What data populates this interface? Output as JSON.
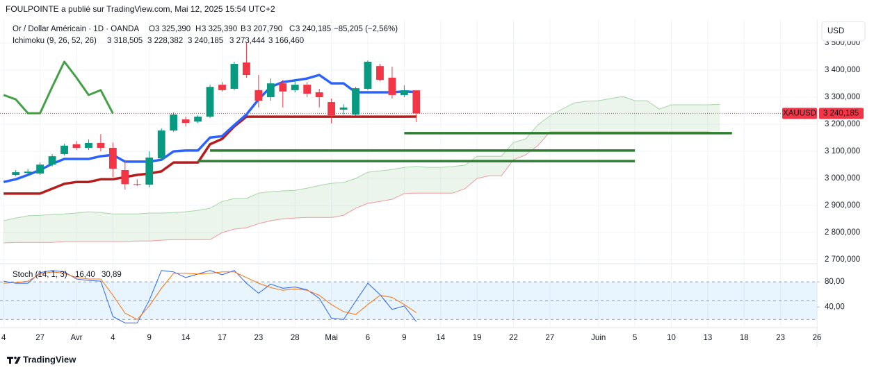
{
  "publisher": "FOULPOINTE a publié sur TradingView.com, Mai 12, 2025 15:54 UTC+2",
  "brand": "TradingView",
  "chart_data": {
    "type": "candlestick",
    "title": "Or / Dollar Américain · 1D · OANDA",
    "ohlc_legend": [
      {
        "key": "O",
        "value": "3 325,390"
      },
      {
        "key": "H",
        "value": "3 325,390"
      },
      {
        "key": "B",
        "value": "3 207,790"
      },
      {
        "key": "C",
        "value": "3 240,185"
      }
    ],
    "change_label": "−85,205 (−2,56%)",
    "currency": "USD",
    "up_color": "#089981",
    "down_color": "#f23645",
    "grid": true,
    "xlim": [
      -0.3,
      67
    ],
    "xticks": [
      {
        "value": 0,
        "label": "4"
      },
      {
        "value": 3,
        "label": "27"
      },
      {
        "value": 6,
        "label": "Avr"
      },
      {
        "value": 9,
        "label": "4"
      },
      {
        "value": 12,
        "label": "9"
      },
      {
        "value": 15,
        "label": "14"
      },
      {
        "value": 18,
        "label": "17"
      },
      {
        "value": 21,
        "label": "23"
      },
      {
        "value": 24,
        "label": "28"
      },
      {
        "value": 27,
        "label": "Mai"
      },
      {
        "value": 30,
        "label": "6"
      },
      {
        "value": 33,
        "label": "9"
      },
      {
        "value": 36,
        "label": "14"
      },
      {
        "value": 39,
        "label": "19"
      },
      {
        "value": 42,
        "label": "22"
      },
      {
        "value": 45,
        "label": "27"
      },
      {
        "value": 49,
        "label": "Juin"
      },
      {
        "value": 52,
        "label": "5"
      },
      {
        "value": 55,
        "label": "10"
      },
      {
        "value": 58,
        "label": "13"
      },
      {
        "value": 61,
        "label": "18"
      },
      {
        "value": 64,
        "label": "23"
      },
      {
        "value": 67,
        "label": "26"
      }
    ],
    "ylim": [
      2685,
      3582
    ],
    "yticks": [
      {
        "value": 3500,
        "label": "3 500,000"
      },
      {
        "value": 3400,
        "label": "3 400,000"
      },
      {
        "value": 3300,
        "label": "3 300,000"
      },
      {
        "value": 3200,
        "label": "3 200,000"
      },
      {
        "value": 3100,
        "label": "3 100,000"
      },
      {
        "value": 3000,
        "label": "3 000,000"
      },
      {
        "value": 2900,
        "label": "2 900,000"
      },
      {
        "value": 2800,
        "label": "2 800,000"
      },
      {
        "value": 2700,
        "label": "2 700,000"
      }
    ],
    "x": [
      1,
      2,
      3,
      4,
      5,
      6,
      7,
      8,
      9,
      10,
      11,
      12,
      13,
      14,
      15,
      16,
      17,
      18,
      19,
      20,
      21,
      22,
      23,
      24,
      25,
      26,
      27,
      28,
      29,
      30,
      31,
      32,
      33,
      34
    ],
    "open": [
      3013,
      3020,
      3018,
      3051,
      3090,
      3126,
      3113,
      3131,
      3113,
      3031,
      2979,
      2977,
      3074,
      3177,
      3218,
      3210,
      3228,
      3346,
      3331,
      3428,
      3326,
      3300,
      3351,
      3326,
      3346,
      3318,
      3282,
      3254,
      3236,
      3331,
      3415,
      3372,
      3308,
      3325.39
    ],
    "high": [
      3031,
      3035,
      3059,
      3090,
      3128,
      3138,
      3144,
      3164,
      3133,
      3064,
      2997,
      3100,
      3185,
      3244,
      3228,
      3233,
      3346,
      3356,
      3431,
      3500,
      3382,
      3369,
      3364,
      3367,
      3356,
      3331,
      3295,
      3274,
      3338,
      3436,
      3423,
      3413,
      3344,
      3325.39
    ],
    "low": [
      3008,
      3012,
      3013,
      3044,
      3085,
      3105,
      3105,
      3100,
      3005,
      2959,
      2972,
      2967,
      3069,
      3172,
      3192,
      3205,
      3223,
      3321,
      3326,
      3372,
      3262,
      3287,
      3262,
      3318,
      3300,
      3262,
      3203,
      3236,
      3231,
      3326,
      3359,
      3295,
      3300,
      3207.79
    ],
    "close": [
      3023,
      3025,
      3051,
      3082,
      3121,
      3113,
      3131,
      3113,
      3036,
      2979,
      2977,
      3077,
      3177,
      3236,
      3205,
      3228,
      3338,
      3326,
      3423,
      3382,
      3287,
      3351,
      3321,
      3346,
      3313,
      3300,
      3233,
      3262,
      3333,
      3431,
      3364,
      3308,
      3325.39,
      3240.185
    ],
    "price_label": {
      "symbol": "XAUUSD",
      "value": "3 240,185"
    },
    "ichimoku": {
      "name": "Ichimoku (9, 26, 52, 26)",
      "cloud_color": "#43a047",
      "series": [
        {
          "color": "#2962ff",
          "width": 3.5,
          "value_label": "3 318,505",
          "x": [
            0,
            1,
            2,
            3,
            4,
            5,
            6,
            7,
            8,
            9,
            10,
            11,
            12,
            13,
            14,
            15,
            16,
            17,
            18,
            19,
            20,
            21,
            22,
            23,
            24,
            25,
            26,
            27,
            28,
            29,
            30,
            31,
            32,
            33,
            34
          ],
          "values": [
            2987,
            2997,
            3013,
            3031,
            3054,
            3072,
            3072,
            3072,
            3082,
            3087,
            3062,
            3062,
            3062,
            3069,
            3100,
            3103,
            3103,
            3151,
            3156,
            3197,
            3236,
            3292,
            3338,
            3356,
            3362,
            3369,
            3382,
            3351,
            3351,
            3318,
            3318,
            3318,
            3318,
            3321,
            3318.505
          ]
        },
        {
          "color": "#b71c1c",
          "width": 3.5,
          "value_label": "3 228,382",
          "x": [
            0,
            1,
            2,
            3,
            4,
            5,
            6,
            7,
            8,
            9,
            10,
            11,
            12,
            13,
            14,
            15,
            16,
            17,
            18,
            19,
            20,
            21,
            22,
            23,
            24,
            25,
            26,
            27,
            28,
            29,
            30,
            31,
            32,
            33,
            34
          ],
          "values": [
            2944,
            2944,
            2944,
            2944,
            2962,
            2980,
            2987,
            2987,
            2997,
            2997,
            3005,
            3013,
            3018,
            3026,
            3059,
            3059,
            3059,
            3126,
            3146,
            3192,
            3228,
            3228,
            3228,
            3228,
            3228,
            3228,
            3228,
            3228,
            3228,
            3228,
            3228,
            3228,
            3228,
            3228,
            3228.382
          ]
        },
        {
          "color": "#43a047",
          "width": 3,
          "value_label": "3 240,185",
          "x": [
            0,
            1,
            2,
            3,
            4,
            5,
            6,
            7,
            8,
            9
          ],
          "values": [
            3308,
            3292,
            3241,
            3241,
            3338,
            3431,
            3372,
            3308,
            3326,
            3240.185
          ]
        },
        {
          "color": "#a5d6a7",
          "width": 1,
          "value_label": "3 273,444",
          "x": [
            0,
            1,
            2,
            3,
            4,
            5,
            6,
            7,
            8,
            9,
            10,
            11,
            12,
            13,
            14,
            15,
            16,
            17,
            18,
            19,
            20,
            21,
            22,
            23,
            24,
            25,
            26,
            27,
            28,
            29,
            30,
            31,
            32,
            33,
            34,
            35,
            36,
            37,
            38,
            39,
            40,
            41,
            42,
            43,
            44,
            45,
            46,
            47,
            48,
            49,
            50,
            51,
            52,
            53,
            54,
            55,
            56,
            57,
            58,
            59
          ],
          "values": [
            2844,
            2854,
            2862,
            2864,
            2867,
            2869,
            2872,
            2877,
            2874,
            2869,
            2869,
            2869,
            2872,
            2872,
            2874,
            2877,
            2882,
            2890,
            2915,
            2926,
            2926,
            2946,
            2951,
            2954,
            2956,
            2964,
            2974,
            2982,
            2985,
            3000,
            3023,
            3028,
            3033,
            3041,
            3044,
            3041,
            3041,
            3044,
            3049,
            3082,
            3082,
            3082,
            3133,
            3146,
            3197,
            3231,
            3256,
            3279,
            3285,
            3287,
            3295,
            3303,
            3287,
            3287,
            3256,
            3272,
            3272,
            3272,
            3272,
            3273.444
          ]
        },
        {
          "color": "#ef9a9a",
          "width": 1,
          "value_label": "3 166,460",
          "x": [
            0,
            1,
            2,
            3,
            4,
            5,
            6,
            7,
            8,
            9,
            10,
            11,
            12,
            13,
            14,
            15,
            16,
            17,
            18,
            19,
            20,
            21,
            22,
            23,
            24,
            25,
            26,
            27,
            28,
            29,
            30,
            31,
            32,
            33,
            34,
            35,
            36,
            37,
            38,
            39,
            40,
            41,
            42,
            43,
            44,
            45,
            46,
            47,
            48,
            49,
            50,
            51,
            52,
            53,
            54,
            55,
            56,
            57,
            58,
            59
          ],
          "values": [
            2762,
            2764,
            2764,
            2764,
            2764,
            2767,
            2767,
            2767,
            2767,
            2767,
            2767,
            2769,
            2769,
            2772,
            2774,
            2774,
            2774,
            2774,
            2800,
            2813,
            2818,
            2833,
            2844,
            2851,
            2854,
            2856,
            2856,
            2856,
            2864,
            2890,
            2908,
            2915,
            2923,
            2944,
            2946,
            2946,
            2946,
            2946,
            2962,
            3000,
            3010,
            3010,
            3069,
            3087,
            3121,
            3172,
            3172,
            3172,
            3172,
            3172,
            3172,
            3172,
            3172,
            3172,
            3172,
            3172,
            3172,
            3172,
            3172,
            3166.46
          ]
        }
      ]
    },
    "levels": {
      "color": "#2e7d32",
      "values": [
        3167,
        3103,
        3064
      ],
      "x_start": [
        33,
        17,
        16
      ],
      "x_end": [
        60,
        52,
        52
      ]
    },
    "stoch": {
      "name": "Stoch (14, 1, 3)",
      "ylim": [
        7,
        109
      ],
      "yticks": [
        {
          "value": 80,
          "label": "80,00"
        },
        {
          "value": 40,
          "label": "40,00"
        }
      ],
      "bands": [
        80,
        50,
        20
      ],
      "band_color": "#2196f3",
      "series": [
        {
          "color": "#2962ff",
          "value_label": "16,40",
          "x": [
            0,
            1,
            2,
            3,
            4,
            5,
            6,
            7,
            8,
            9,
            10,
            11,
            12,
            13,
            14,
            15,
            16,
            17,
            18,
            19,
            20,
            21,
            22,
            23,
            24,
            25,
            26,
            27,
            28,
            29,
            30,
            31,
            32,
            33,
            34
          ],
          "values": [
            81.2,
            77.8,
            77.8,
            94.8,
            98.2,
            95.9,
            84.6,
            82.3,
            81.2,
            24.6,
            14.4,
            14.4,
            50.6,
            98.2,
            95.9,
            86.9,
            92.5,
            98.2,
            91.4,
            98.2,
            77.8,
            61.9,
            76.5,
            69.7,
            71.9,
            67.4,
            53.8,
            22.1,
            19.9,
            49.3,
            77.8,
            59.7,
            35.9,
            41.6,
            16.4
          ]
        },
        {
          "color": "#ff6d00",
          "value_label": "30,89",
          "x": [
            0,
            1,
            2,
            3,
            4,
            5,
            6,
            7,
            8,
            9,
            10,
            11,
            12,
            13,
            14,
            15,
            16,
            17,
            18,
            19,
            20,
            21,
            22,
            23,
            24,
            25,
            26,
            27,
            28,
            29,
            30,
            31,
            32,
            33,
            34
          ],
          "values": [
            77.8,
            79,
            81.2,
            92.5,
            95.9,
            93.7,
            86.9,
            84.6,
            84.6,
            58.6,
            30.2,
            19.9,
            41.6,
            69.9,
            93.7,
            93.7,
            92.5,
            93.7,
            95.9,
            95.9,
            86.9,
            77.8,
            71.0,
            66.5,
            68.7,
            66.5,
            58.6,
            43.8,
            32.5,
            28.0,
            43.8,
            58.6,
            55.2,
            43.8,
            30.89
          ]
        }
      ]
    }
  }
}
